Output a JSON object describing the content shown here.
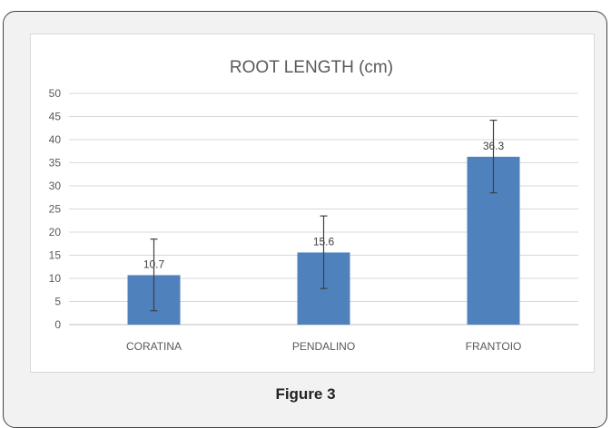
{
  "figure": {
    "caption": "Figure 3"
  },
  "chart_data": {
    "type": "bar",
    "title": "ROOT LENGTH (cm)",
    "xlabel": "",
    "ylabel": "",
    "categories": [
      "CORATINA",
      "PENDALINO",
      "FRANTOIO"
    ],
    "values": [
      10.7,
      15.6,
      36.3
    ],
    "data_labels": [
      "10.7",
      "15.6",
      "36.3"
    ],
    "error_bars": [
      {
        "low": 3,
        "high": 18.5
      },
      {
        "low": 7.8,
        "high": 23.5
      },
      {
        "low": 28.5,
        "high": 44.2
      }
    ],
    "ylim": [
      0,
      50
    ],
    "yticks": [
      0,
      5,
      10,
      15,
      20,
      25,
      30,
      35,
      40,
      45,
      50
    ],
    "grid": true,
    "legend": "none",
    "bar_color": "#4f81bd",
    "error_bar_color": "#404040"
  }
}
